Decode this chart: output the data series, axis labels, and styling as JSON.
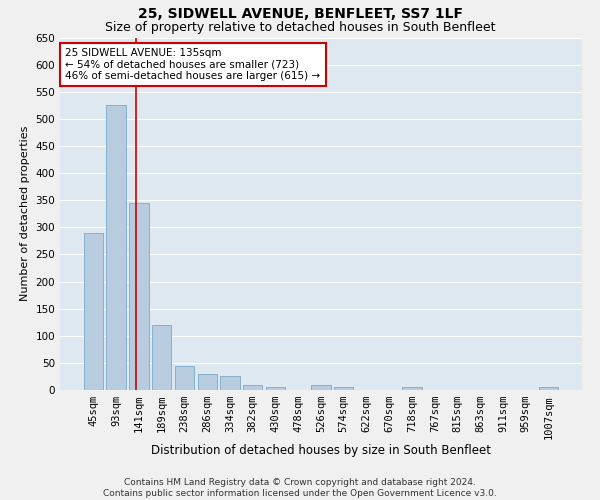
{
  "title": "25, SIDWELL AVENUE, BENFLEET, SS7 1LF",
  "subtitle": "Size of property relative to detached houses in South Benfleet",
  "xlabel": "Distribution of detached houses by size in South Benfleet",
  "ylabel": "Number of detached properties",
  "categories": [
    "45sqm",
    "93sqm",
    "141sqm",
    "189sqm",
    "238sqm",
    "286sqm",
    "334sqm",
    "382sqm",
    "430sqm",
    "478sqm",
    "526sqm",
    "574sqm",
    "622sqm",
    "670sqm",
    "718sqm",
    "767sqm",
    "815sqm",
    "863sqm",
    "911sqm",
    "959sqm",
    "1007sqm"
  ],
  "values": [
    290,
    525,
    345,
    120,
    45,
    30,
    25,
    10,
    5,
    0,
    10,
    5,
    0,
    0,
    5,
    0,
    0,
    0,
    0,
    0,
    5
  ],
  "bar_color": "#b8ccdf",
  "bar_edge_color": "#7aaac8",
  "background_color": "#dde8f0",
  "grid_color": "#ffffff",
  "fig_background": "#f0f0f0",
  "red_line_color": "#cc0000",
  "red_line_x": 2.0,
  "annotation_line1": "25 SIDWELL AVENUE: 135sqm",
  "annotation_line2": "← 54% of detached houses are smaller (723)",
  "annotation_line3": "46% of semi-detached houses are larger (615) →",
  "annotation_box_color": "#ffffff",
  "annotation_box_edge": "#cc0000",
  "ylim": [
    0,
    650
  ],
  "yticks": [
    0,
    50,
    100,
    150,
    200,
    250,
    300,
    350,
    400,
    450,
    500,
    550,
    600,
    650
  ],
  "footer": "Contains HM Land Registry data © Crown copyright and database right 2024.\nContains public sector information licensed under the Open Government Licence v3.0.",
  "title_fontsize": 10,
  "subtitle_fontsize": 9,
  "xlabel_fontsize": 8.5,
  "ylabel_fontsize": 8,
  "tick_fontsize": 7.5,
  "annot_fontsize": 7.5,
  "footer_fontsize": 6.5
}
